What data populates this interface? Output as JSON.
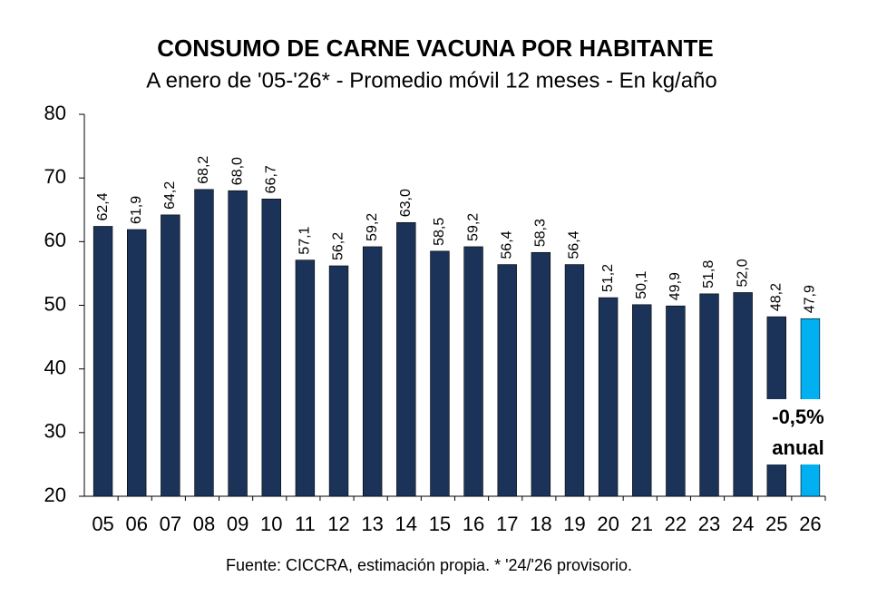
{
  "chart_data": {
    "type": "bar",
    "title": "CONSUMO DE CARNE VACUNA POR HABITANTE",
    "subtitle": "A enero de '05-'26* - Promedio móvil 12 meses -  En kg/año",
    "source": "Fuente: CICCRA, estimación propia. * '24/'26 provisorio.",
    "categories": [
      "05",
      "06",
      "07",
      "08",
      "09",
      "10",
      "11",
      "12",
      "13",
      "14",
      "15",
      "16",
      "17",
      "18",
      "19",
      "20",
      "21",
      "22",
      "23",
      "24",
      "25",
      "26"
    ],
    "values": [
      62.4,
      61.9,
      64.2,
      68.2,
      68.0,
      66.7,
      57.1,
      56.2,
      59.2,
      63.0,
      58.5,
      59.2,
      56.4,
      58.3,
      56.4,
      51.2,
      50.1,
      49.9,
      51.8,
      52.0,
      48.2,
      47.9
    ],
    "value_labels": [
      "62,4",
      "61,9",
      "64,2",
      "68,2",
      "68,0",
      "66,7",
      "57,1",
      "56,2",
      "59,2",
      "63,0",
      "58,5",
      "59,2",
      "56,4",
      "58,3",
      "56,4",
      "51,2",
      "50,1",
      "49,9",
      "51,8",
      "52,0",
      "48,2",
      "47,9"
    ],
    "colors": [
      "#1b3358",
      "#1b3358",
      "#1b3358",
      "#1b3358",
      "#1b3358",
      "#1b3358",
      "#1b3358",
      "#1b3358",
      "#1b3358",
      "#1b3358",
      "#1b3358",
      "#1b3358",
      "#1b3358",
      "#1b3358",
      "#1b3358",
      "#1b3358",
      "#1b3358",
      "#1b3358",
      "#1b3358",
      "#1b3358",
      "#1b3358",
      "#00b0f0"
    ],
    "annotations": [
      "-0,5%",
      "anual"
    ],
    "ylim": [
      20,
      80
    ],
    "yticks": [
      20,
      30,
      40,
      50,
      60,
      70,
      80
    ],
    "grid": false
  }
}
